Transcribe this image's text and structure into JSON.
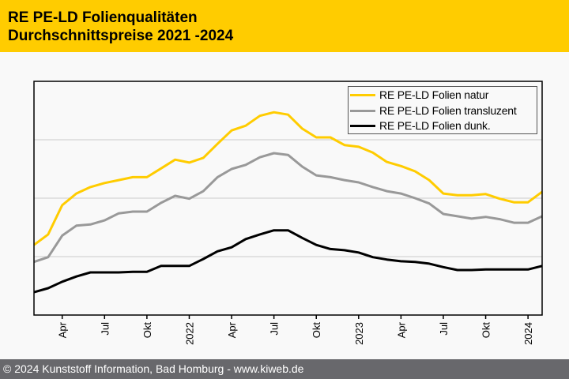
{
  "header": {
    "title_line1": "RE PE-LD Folienqualitäten",
    "title_line2": "Durchschnittspreise 2021 -2024",
    "background_color": "#ffcc00"
  },
  "footer": {
    "text": "© 2024 Kunststoff Information, Bad Homburg - www.kiweb.de",
    "background_color": "#68686c"
  },
  "chart_data": {
    "type": "line",
    "title": "RE PE-LD Folienqualitäten – Durchschnittspreise 2021 -2024",
    "xlabel": "",
    "ylabel": "",
    "y_units_note": "no y-axis labels shown; values in relative units (gridlines at 100, 200, 300)",
    "ylim": [
      0,
      400
    ],
    "y_gridlines": [
      100,
      200,
      300
    ],
    "grid": true,
    "legend_position": "top-right",
    "x": [
      "2021-02",
      "2021-03",
      "2021-04",
      "2021-05",
      "2021-06",
      "2021-07",
      "2021-08",
      "2021-09",
      "2021-10",
      "2021-11",
      "2021-12",
      "2022-01",
      "2022-02",
      "2022-03",
      "2022-04",
      "2022-05",
      "2022-06",
      "2022-07",
      "2022-08",
      "2022-09",
      "2022-10",
      "2022-11",
      "2022-12",
      "2023-01",
      "2023-02",
      "2023-03",
      "2023-04",
      "2023-05",
      "2023-06",
      "2023-07",
      "2023-08",
      "2023-09",
      "2023-10",
      "2023-11",
      "2023-12",
      "2024-01",
      "2024-02"
    ],
    "x_ticks": [
      {
        "index": 2,
        "label": "Apr"
      },
      {
        "index": 5,
        "label": "Jul"
      },
      {
        "index": 8,
        "label": "Okt"
      },
      {
        "index": 11,
        "label": "2022"
      },
      {
        "index": 14,
        "label": "Apr"
      },
      {
        "index": 17,
        "label": "Jul"
      },
      {
        "index": 20,
        "label": "Okt"
      },
      {
        "index": 23,
        "label": "2023"
      },
      {
        "index": 26,
        "label": "Apr"
      },
      {
        "index": 29,
        "label": "Jul"
      },
      {
        "index": 32,
        "label": "Okt"
      },
      {
        "index": 35,
        "label": "2024"
      }
    ],
    "series": [
      {
        "name": "RE PE-LD Folien natur",
        "color": "#ffcc00",
        "values": [
          120,
          138,
          188,
          208,
          219,
          226,
          231,
          236,
          236,
          251,
          266,
          261,
          269,
          293,
          316,
          324,
          341,
          347,
          343,
          319,
          304,
          304,
          291,
          288,
          278,
          262,
          255,
          246,
          231,
          208,
          205,
          205,
          207,
          199,
          193,
          193,
          211
        ]
      },
      {
        "name": "RE PE-LD Folien transluzent",
        "color": "#999999",
        "values": [
          91,
          99,
          136,
          153,
          155,
          162,
          174,
          177,
          177,
          192,
          204,
          199,
          212,
          236,
          250,
          257,
          270,
          277,
          274,
          254,
          239,
          236,
          231,
          227,
          219,
          212,
          208,
          200,
          191,
          173,
          169,
          165,
          168,
          164,
          158,
          158,
          169
        ]
      },
      {
        "name": "RE PE-LD Folien dunk.",
        "color": "#000000",
        "values": [
          39,
          46,
          57,
          66,
          73,
          73,
          73,
          74,
          74,
          84,
          84,
          84,
          96,
          109,
          116,
          130,
          138,
          145,
          145,
          132,
          120,
          113,
          111,
          107,
          99,
          95,
          92,
          91,
          88,
          82,
          77,
          77,
          78,
          78,
          78,
          78,
          84
        ]
      }
    ]
  }
}
